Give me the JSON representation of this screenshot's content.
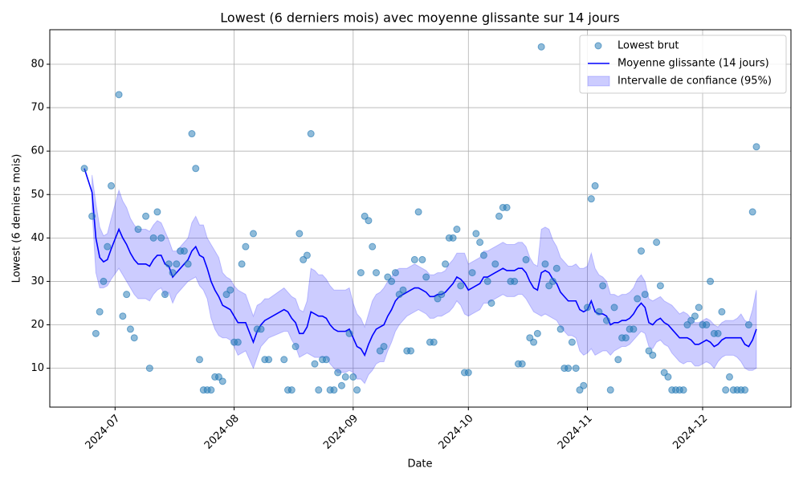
{
  "chart_data": {
    "type": "combo",
    "title": "Lowest (6 derniers mois) avec moyenne glissante sur 14 jours",
    "x_label": "Date",
    "y_label": "Lowest (6 derniers mois)",
    "grid": true,
    "legend_loc": "upper right",
    "xlim": [
      "2024-06-14",
      "2024-12-24"
    ],
    "xticks": [
      {
        "value": "2024-07-01",
        "label": "2024-07"
      },
      {
        "value": "2024-08-01",
        "label": "2024-08"
      },
      {
        "value": "2024-09-01",
        "label": "2024-09"
      },
      {
        "value": "2024-10-01",
        "label": "2024-10"
      },
      {
        "value": "2024-11-01",
        "label": "2024-11"
      },
      {
        "value": "2024-12-01",
        "label": "2024-12"
      }
    ],
    "ylim": [
      1.05,
      87.95
    ],
    "yticks": [
      10,
      20,
      30,
      40,
      50,
      60,
      70,
      80
    ],
    "x": [
      "2024-06-23",
      "2024-06-25",
      "2024-06-26",
      "2024-06-27",
      "2024-06-28",
      "2024-06-29",
      "2024-06-30",
      "2024-07-02",
      "2024-07-03",
      "2024-07-04",
      "2024-07-05",
      "2024-07-06",
      "2024-07-07",
      "2024-07-09",
      "2024-07-10",
      "2024-07-11",
      "2024-07-12",
      "2024-07-13",
      "2024-07-14",
      "2024-07-15",
      "2024-07-16",
      "2024-07-17",
      "2024-07-18",
      "2024-07-19",
      "2024-07-20",
      "2024-07-21",
      "2024-07-22",
      "2024-07-23",
      "2024-07-24",
      "2024-07-25",
      "2024-07-26",
      "2024-07-27",
      "2024-07-28",
      "2024-07-29",
      "2024-07-30",
      "2024-07-31",
      "2024-08-01",
      "2024-08-02",
      "2024-08-03",
      "2024-08-04",
      "2024-08-06",
      "2024-08-07",
      "2024-08-08",
      "2024-08-09",
      "2024-08-10",
      "2024-08-14",
      "2024-08-15",
      "2024-08-16",
      "2024-08-17",
      "2024-08-18",
      "2024-08-19",
      "2024-08-20",
      "2024-08-21",
      "2024-08-22",
      "2024-08-23",
      "2024-08-24",
      "2024-08-25",
      "2024-08-26",
      "2024-08-27",
      "2024-08-28",
      "2024-08-29",
      "2024-08-30",
      "2024-08-31",
      "2024-09-01",
      "2024-09-02",
      "2024-09-03",
      "2024-09-04",
      "2024-09-05",
      "2024-09-06",
      "2024-09-07",
      "2024-09-08",
      "2024-09-09",
      "2024-09-10",
      "2024-09-11",
      "2024-09-12",
      "2024-09-13",
      "2024-09-14",
      "2024-09-15",
      "2024-09-16",
      "2024-09-17",
      "2024-09-18",
      "2024-09-19",
      "2024-09-20",
      "2024-09-21",
      "2024-09-22",
      "2024-09-23",
      "2024-09-24",
      "2024-09-25",
      "2024-09-26",
      "2024-09-27",
      "2024-09-28",
      "2024-09-29",
      "2024-09-30",
      "2024-10-01",
      "2024-10-02",
      "2024-10-03",
      "2024-10-04",
      "2024-10-05",
      "2024-10-06",
      "2024-10-07",
      "2024-10-08",
      "2024-10-09",
      "2024-10-10",
      "2024-10-11",
      "2024-10-12",
      "2024-10-13",
      "2024-10-14",
      "2024-10-15",
      "2024-10-16",
      "2024-10-17",
      "2024-10-18",
      "2024-10-19",
      "2024-10-20",
      "2024-10-21",
      "2024-10-22",
      "2024-10-23",
      "2024-10-24",
      "2024-10-25",
      "2024-10-26",
      "2024-10-27",
      "2024-10-28",
      "2024-10-29",
      "2024-10-30",
      "2024-10-31",
      "2024-11-01",
      "2024-11-02",
      "2024-11-03",
      "2024-11-04",
      "2024-11-05",
      "2024-11-06",
      "2024-11-07",
      "2024-11-08",
      "2024-11-09",
      "2024-11-10",
      "2024-11-11",
      "2024-11-12",
      "2024-11-13",
      "2024-11-14",
      "2024-11-15",
      "2024-11-16",
      "2024-11-17",
      "2024-11-18",
      "2024-11-19",
      "2024-11-20",
      "2024-11-21",
      "2024-11-22",
      "2024-11-23",
      "2024-11-24",
      "2024-11-25",
      "2024-11-26",
      "2024-11-27",
      "2024-11-28",
      "2024-11-29",
      "2024-11-30",
      "2024-12-01",
      "2024-12-02",
      "2024-12-03",
      "2024-12-04",
      "2024-12-05",
      "2024-12-06",
      "2024-12-07",
      "2024-12-08",
      "2024-12-09",
      "2024-12-10",
      "2024-12-11",
      "2024-12-12",
      "2024-12-13",
      "2024-12-14",
      "2024-12-15"
    ],
    "series": [
      {
        "name": "Lowest brut",
        "type": "scatter",
        "color": "#1f77b4",
        "values": [
          56,
          45,
          18,
          23,
          30,
          38,
          52,
          73,
          22,
          27,
          19,
          17,
          42,
          45,
          10,
          40,
          46,
          40,
          27,
          34,
          32,
          34,
          37,
          37,
          34,
          64,
          56,
          12,
          5,
          5,
          5,
          8,
          8,
          7,
          27,
          28,
          16,
          16,
          34,
          38,
          41,
          19,
          19,
          12,
          12,
          12,
          5,
          5,
          15,
          41,
          35,
          36,
          64,
          11,
          5,
          12,
          12,
          5,
          5,
          9,
          6,
          8,
          18,
          8,
          5,
          32,
          45,
          44,
          38,
          32,
          14,
          15,
          31,
          30,
          32,
          27,
          28,
          14,
          14,
          35,
          46,
          35,
          31,
          16,
          16,
          26,
          27,
          34,
          40,
          40,
          42,
          29,
          9,
          9,
          32,
          41,
          39,
          36,
          30,
          25,
          34,
          45,
          47,
          47,
          30,
          30,
          11,
          11,
          35,
          17,
          16,
          18,
          84,
          34,
          29,
          30,
          33,
          19,
          10,
          10,
          16,
          10,
          5,
          6,
          24,
          49,
          52,
          23,
          29,
          21,
          5,
          24,
          12,
          17,
          17,
          19,
          19,
          26,
          37,
          27,
          14,
          13,
          39,
          29,
          9,
          8,
          5,
          5,
          5,
          5,
          20,
          21,
          22,
          24,
          20,
          20,
          30,
          18,
          18,
          23,
          5,
          8,
          5,
          5,
          5,
          5,
          20,
          46,
          61
        ]
      },
      {
        "name": "Moyenne glissante (14 jours)",
        "type": "line",
        "color": "#0000ff",
        "values": [
          56,
          50.5,
          40,
          35.5,
          34.5,
          35,
          37.5,
          42,
          40,
          38.5,
          36.5,
          35,
          34,
          34,
          33.5,
          35,
          36,
          36,
          34,
          33.5,
          31,
          32,
          33,
          34,
          35,
          37,
          38,
          36,
          35.5,
          33,
          30,
          28,
          26.5,
          24.5,
          24,
          23.5,
          22,
          20.5,
          20.5,
          20.5,
          16,
          18.5,
          20,
          21,
          21.5,
          23.5,
          23,
          21.5,
          20.5,
          18,
          18,
          19.5,
          23,
          22.5,
          22,
          22,
          21.5,
          20,
          19,
          18.5,
          18.5,
          18.5,
          19,
          17,
          15,
          14.5,
          13,
          15.5,
          17.5,
          19,
          19.5,
          20,
          22,
          23.5,
          25.5,
          26.5,
          27,
          27.5,
          28,
          28.5,
          28.5,
          28,
          27.5,
          26.5,
          26.5,
          27,
          27,
          27.5,
          28.5,
          29.5,
          31,
          30.5,
          29.5,
          28,
          28.5,
          29,
          29.5,
          31,
          31,
          31.5,
          32,
          32.5,
          33,
          32.5,
          32.5,
          32.5,
          33,
          33,
          32,
          30,
          28.5,
          28,
          32,
          32.5,
          32,
          30.5,
          29.5,
          27.5,
          26.5,
          25.5,
          25.5,
          25.5,
          23.5,
          23,
          23.5,
          25.5,
          23,
          22.5,
          22.5,
          22,
          20,
          20.5,
          20.5,
          21,
          21,
          21.5,
          22.5,
          24,
          25,
          24,
          20.5,
          20,
          21,
          21.5,
          20.5,
          20,
          19,
          18,
          17,
          17,
          17,
          16.5,
          15.5,
          15.5,
          16,
          16.5,
          16,
          15,
          15.5,
          16.5,
          17,
          17,
          17,
          17,
          17,
          15.5,
          15,
          16.5,
          19
        ]
      },
      {
        "name": "Intervalle de confiance (95%)",
        "type": "band",
        "color": "#0000ff",
        "lower": [
          null,
          46.5,
          32,
          28.5,
          28.5,
          29,
          30.5,
          33,
          31.5,
          30,
          28.5,
          27,
          26,
          26,
          25.5,
          27,
          28,
          28.5,
          26.5,
          27.5,
          25,
          27,
          28,
          29,
          30,
          30.5,
          31,
          29,
          28,
          26,
          21.5,
          19,
          17.5,
          17,
          17,
          16.5,
          15,
          13,
          13.5,
          14,
          10,
          12.5,
          15,
          16,
          17,
          18.5,
          18.5,
          16.5,
          15,
          12.5,
          13,
          13.5,
          13,
          12.5,
          12.5,
          12.5,
          12.5,
          11,
          10,
          9,
          9,
          9,
          9.5,
          9,
          7.5,
          7.5,
          6.5,
          8.5,
          9.5,
          11,
          11.5,
          11.5,
          14,
          16,
          18.5,
          20,
          21,
          22,
          22.5,
          23,
          23.5,
          23,
          22.5,
          21.5,
          21.5,
          22,
          22,
          22.5,
          23,
          24,
          25.5,
          24.5,
          22.5,
          22,
          22.5,
          23,
          23.5,
          25,
          25,
          25.5,
          26,
          26.5,
          27,
          26.5,
          26.5,
          26.5,
          27,
          27,
          26,
          24.5,
          23,
          22.5,
          22,
          22.5,
          22,
          21.5,
          21,
          19.5,
          18.5,
          17.5,
          17.5,
          17,
          14,
          13,
          13.5,
          14.5,
          13,
          13.5,
          14,
          14,
          13,
          14,
          14.5,
          15,
          15,
          15.5,
          16.5,
          17.5,
          18.5,
          18,
          15,
          14.5,
          16,
          16.5,
          15.5,
          15,
          13.5,
          12.5,
          11.5,
          11,
          11.5,
          11.5,
          10.5,
          10.5,
          11,
          11.5,
          11,
          10,
          11.5,
          12.5,
          13,
          13,
          13,
          12.5,
          11.5,
          10,
          9.5,
          9.5,
          10
        ],
        "upper": [
          null,
          54.5,
          48,
          42.5,
          40.5,
          41,
          44.5,
          51,
          48.5,
          47,
          44.5,
          43,
          42,
          42,
          41.5,
          43,
          44,
          43.5,
          41.5,
          39.5,
          37,
          37,
          38,
          39,
          40,
          43.5,
          45,
          43,
          43,
          40,
          38.5,
          37,
          35.5,
          32,
          31,
          30.5,
          29,
          28,
          27.5,
          27,
          22,
          24.5,
          25,
          26,
          26,
          28.5,
          27.5,
          26.5,
          26,
          23.5,
          23,
          25.5,
          33,
          32.5,
          31.5,
          31.5,
          30.5,
          29,
          28,
          28,
          28,
          28,
          28.5,
          25,
          22.5,
          21.5,
          19.5,
          22.5,
          25.5,
          27,
          27.5,
          28.5,
          30,
          31,
          32.5,
          33,
          33,
          33,
          33.5,
          34,
          33.5,
          33,
          32.5,
          31.5,
          31.5,
          32,
          32,
          32.5,
          34,
          35,
          36.5,
          36.5,
          36.5,
          34,
          34.5,
          35,
          35.5,
          37,
          37,
          37.5,
          38,
          38.5,
          39,
          38.5,
          38.5,
          38.5,
          39,
          39,
          38,
          35.5,
          34,
          33.5,
          42,
          42.5,
          42,
          39.5,
          38,
          35.5,
          34.5,
          33.5,
          33.5,
          34,
          33,
          33,
          33.5,
          36.5,
          33,
          31.5,
          31,
          30,
          27,
          27,
          26.5,
          27,
          27,
          27.5,
          28.5,
          30.5,
          31.5,
          30,
          26,
          25.5,
          26,
          26.5,
          25.5,
          25,
          24.5,
          23.5,
          22.5,
          23,
          22.5,
          21.5,
          20.5,
          20.5,
          21,
          21.5,
          21,
          20,
          19.5,
          20.5,
          21,
          21,
          21,
          21.5,
          22.5,
          21,
          20.5,
          23.5,
          28
        ]
      }
    ]
  }
}
